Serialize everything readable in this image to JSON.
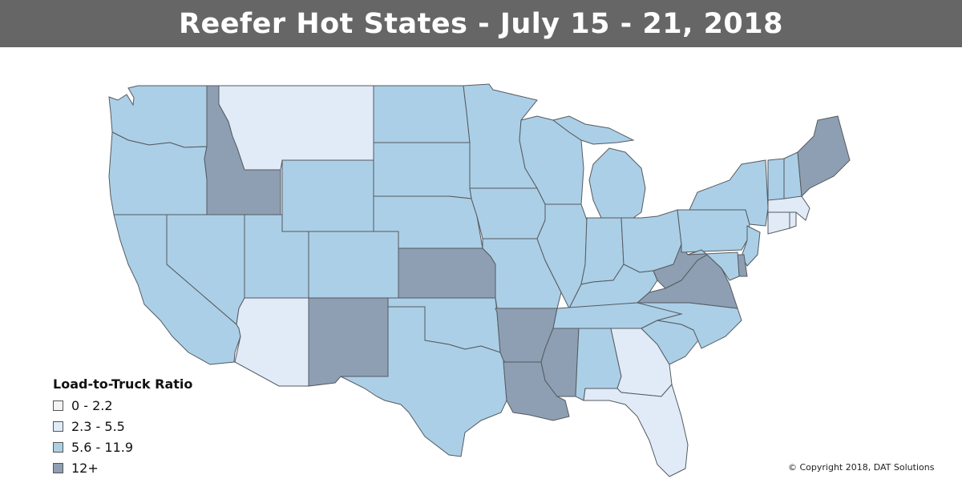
{
  "title": "Reefer Hot States - July 15 - 21, 2018",
  "legend": {
    "title": "Load-to-Truck Ratio",
    "items": [
      {
        "label": "0 - 2.2",
        "color": "#f3f4f6"
      },
      {
        "label": "2.3 - 5.5",
        "color": "#e1ebf8"
      },
      {
        "label": "5.6 - 11.9",
        "color": "#abcfe6"
      },
      {
        "label": "12+",
        "color": "#8e9fb3"
      }
    ]
  },
  "copyright": "© Copyright 2018, DAT Solutions",
  "colors": {
    "title_bar": "#666666",
    "low": "#f3f4f6",
    "medium_low": "#e1ebf8",
    "medium": "#abcfe6",
    "high": "#8e9fb3"
  },
  "state_categories": {
    "WA": "5.6 - 11.9",
    "OR": "5.6 - 11.9",
    "CA": "5.6 - 11.9",
    "ID": "12+",
    "NV": "5.6 - 11.9",
    "MT": "2.3 - 5.5",
    "WY": "5.6 - 11.9",
    "UT": "5.6 - 11.9",
    "AZ": "2.3 - 5.5",
    "CO": "5.6 - 11.9",
    "NM": "12+",
    "ND": "5.6 - 11.9",
    "SD": "5.6 - 11.9",
    "NE": "5.6 - 11.9",
    "KS": "12+",
    "OK": "5.6 - 11.9",
    "TX": "5.6 - 11.9",
    "MN": "5.6 - 11.9",
    "IA": "5.6 - 11.9",
    "MO": "5.6 - 11.9",
    "AR": "12+",
    "LA": "12+",
    "WI": "5.6 - 11.9",
    "IL": "5.6 - 11.9",
    "MI": "5.6 - 11.9",
    "IN": "5.6 - 11.9",
    "OH": "5.6 - 11.9",
    "KY": "5.6 - 11.9",
    "TN": "5.6 - 11.9",
    "MS": "12+",
    "AL": "5.6 - 11.9",
    "GA": "2.3 - 5.5",
    "FL": "2.3 - 5.5",
    "SC": "5.6 - 11.9",
    "NC": "5.6 - 11.9",
    "VA": "12+",
    "WV": "12+",
    "PA": "5.6 - 11.9",
    "NY": "5.6 - 11.9",
    "NJ": "5.6 - 11.9",
    "DE": "12+",
    "MD": "5.6 - 11.9",
    "CT": "2.3 - 5.5",
    "RI": "2.3 - 5.5",
    "MA": "2.3 - 5.5",
    "VT": "5.6 - 11.9",
    "NH": "5.6 - 11.9",
    "ME": "12+"
  }
}
